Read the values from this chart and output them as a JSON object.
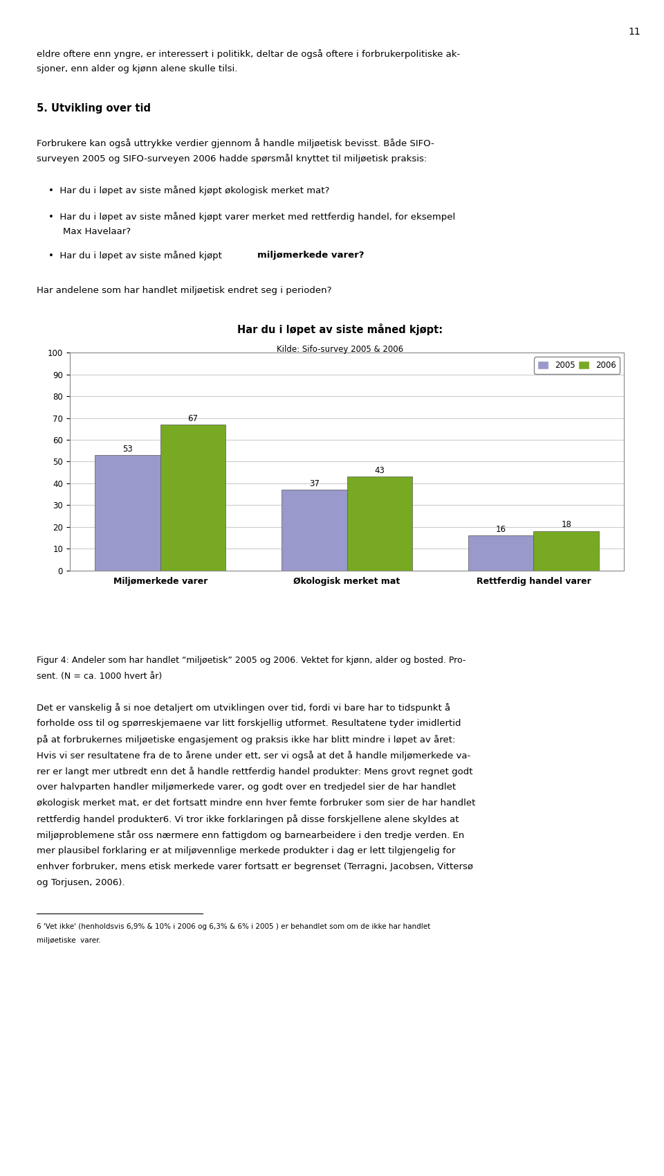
{
  "title_line1": "Har du i løpet av siste måned kjøpt:",
  "title_line2": "Kilde: Sifo-survey 2005 & 2006",
  "categories": [
    "Miljømerkede varer",
    "Økologisk merket mat",
    "Rettferdig handel varer"
  ],
  "values_2005": [
    53,
    37,
    16
  ],
  "values_2006": [
    67,
    43,
    18
  ],
  "color_2005": "#9999cc",
  "color_2006": "#77aa22",
  "legend_labels": [
    "2005",
    "2006"
  ],
  "ylim": [
    0,
    100
  ],
  "yticks": [
    0,
    10,
    20,
    30,
    40,
    50,
    60,
    70,
    80,
    90,
    100
  ],
  "bar_width": 0.35,
  "figure_bg": "#ffffff",
  "chart_bg": "#ffffff",
  "grid_color": "#cccccc",
  "border_color": "#888888",
  "page_number": "11",
  "text_top1": "eldre oftere enn yngre, er interessert i politikk, deltar de også oftere i forbrukerpolitiske ak-",
  "text_top2": "sjoner, enn alder og kjønn alene skulle tilsi.",
  "section_title": "5. Utvikling over tid",
  "para1_line1": "Forbrukere kan også uttrykke verdier gjennom å handle miljøetisk bevisst. Både SIFO-",
  "para1_line2": "surveyen 2005 og SIFO-surveyen 2006 hadde spørsmål knyttet til miljøetisk praksis:",
  "bullet1": "Har du i løpet av siste måned kjøpt økologisk merket mat?",
  "bullet2_line1": "Har du i løpet av siste måned kjøpt varer merket med rettferdig handel, for eksempel",
  "bullet2_line2": "Max Havelaar?",
  "bullet3_bold": "Har du i løpet av siste måned kjøpt miljømerkede varer?",
  "question": "Har andelene som har handlet miljøetisk endret seg i perioden?",
  "caption_line1": "Figur 4: Andeler som har handlet “miljøetisk” 2005 og 2006. Vektet for kjønn, alder og bosted. Pro-",
  "caption_line2": "sent. (N = ca. 1000 hvert år)",
  "body_para1_line1": "Det er vanskelig å si noe detaljert om utviklingen over tid, fordi vi bare har to tidspunkt å",
  "body_para1_line2": "forholde oss til og spørreskjemaene var litt forskjellig utformet. Resultatene tyder imidlertid",
  "body_para1_line3": "på at forbrukernes miljøetiske engasjement og praksis ikke har blitt mindre i løpet av året:",
  "body_para1_line4": "Hvis vi ser resultatene fra de to årene under ett, ser vi også at det å handle miljømerkede va-",
  "body_para1_line5": "rer er langt mer utbredt enn det å handle rettferdig handel produkter: Mens grovt regnet godt",
  "body_para1_line6": "over halvparten handler miljømerkede varer, og godt over en tredjedel sier de har handlet",
  "body_para1_line7": "økologisk merket mat, er det fortsatt mindre enn hver femte forbruker som sier de har handlet",
  "body_para1_line8": "rettferdig handel produkter",
  "superscript": "6",
  "body_para1_line8b": ". Vi tror ikke forklaringen på disse forskjellene alene skyldes at",
  "body_para1_line9": "miljøproblemene står oss nærmere enn fattigdom og barnearbeidere i den tredje verden. En",
  "body_para1_line10": "mer plausibel forklaring er at miljøvennlige merkede produkter i dag er lett tilgjengelig for",
  "body_para1_line11": "enhver forbruker, mens etisk merkede varer fortsatt er begrenset (Terragni, Jacobsen, Vittersø",
  "body_para1_line12": "og Torjusen, 2006).",
  "footnote_line1": "'Vet ikke' (henholdsvis 6,9% & 10% i 2006 og 6,3% & 6% i 2005 ) er behandlet som om de ikke har handlet",
  "footnote_line2": "miljøetiske  varer."
}
